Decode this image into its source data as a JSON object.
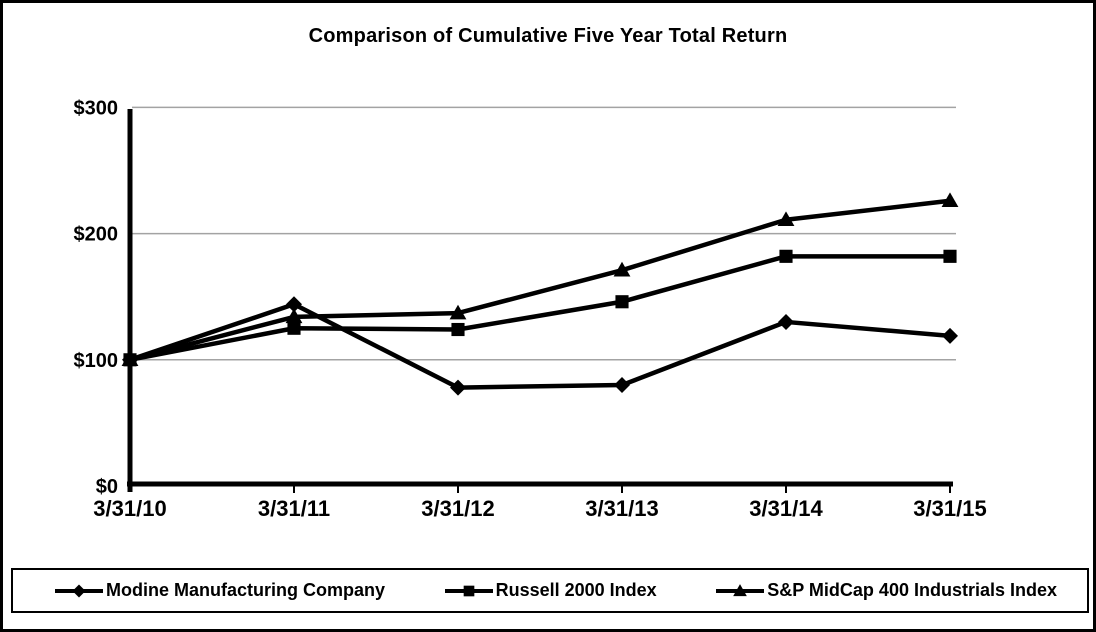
{
  "frame": {
    "background": "#ffffff",
    "border_color": "#000000"
  },
  "chart_data": {
    "type": "line",
    "title": "Comparison of Cumulative Five Year Total Return",
    "categories": [
      "3/31/10",
      "3/31/11",
      "3/31/12",
      "3/31/13",
      "3/31/14",
      "3/31/15"
    ],
    "series": [
      {
        "name": "Modine Manufacturing Company",
        "marker": "diamond",
        "color": "#000000",
        "values": [
          100,
          144,
          78,
          80,
          130,
          119
        ]
      },
      {
        "name": "Russell 2000 Index",
        "marker": "square",
        "color": "#000000",
        "values": [
          100,
          125,
          124,
          146,
          182,
          182
        ]
      },
      {
        "name": "S&P MidCap 400 Industrials Index",
        "marker": "triangle",
        "color": "#000000",
        "values": [
          100,
          134,
          137,
          171,
          211,
          226
        ]
      }
    ],
    "y_axis": {
      "ticks": [
        {
          "label": "$0",
          "value": 0
        },
        {
          "label": "$100",
          "value": 100
        },
        {
          "label": "$200",
          "value": 200
        },
        {
          "label": "$300",
          "value": 300
        }
      ],
      "range": [
        0,
        300
      ]
    },
    "x_axis": {
      "label": "",
      "tick_labels_bold": true
    },
    "grid": {
      "horizontal": true,
      "color": "#a3a3a3"
    },
    "legend_position": "bottom",
    "line_color": "#000000"
  }
}
